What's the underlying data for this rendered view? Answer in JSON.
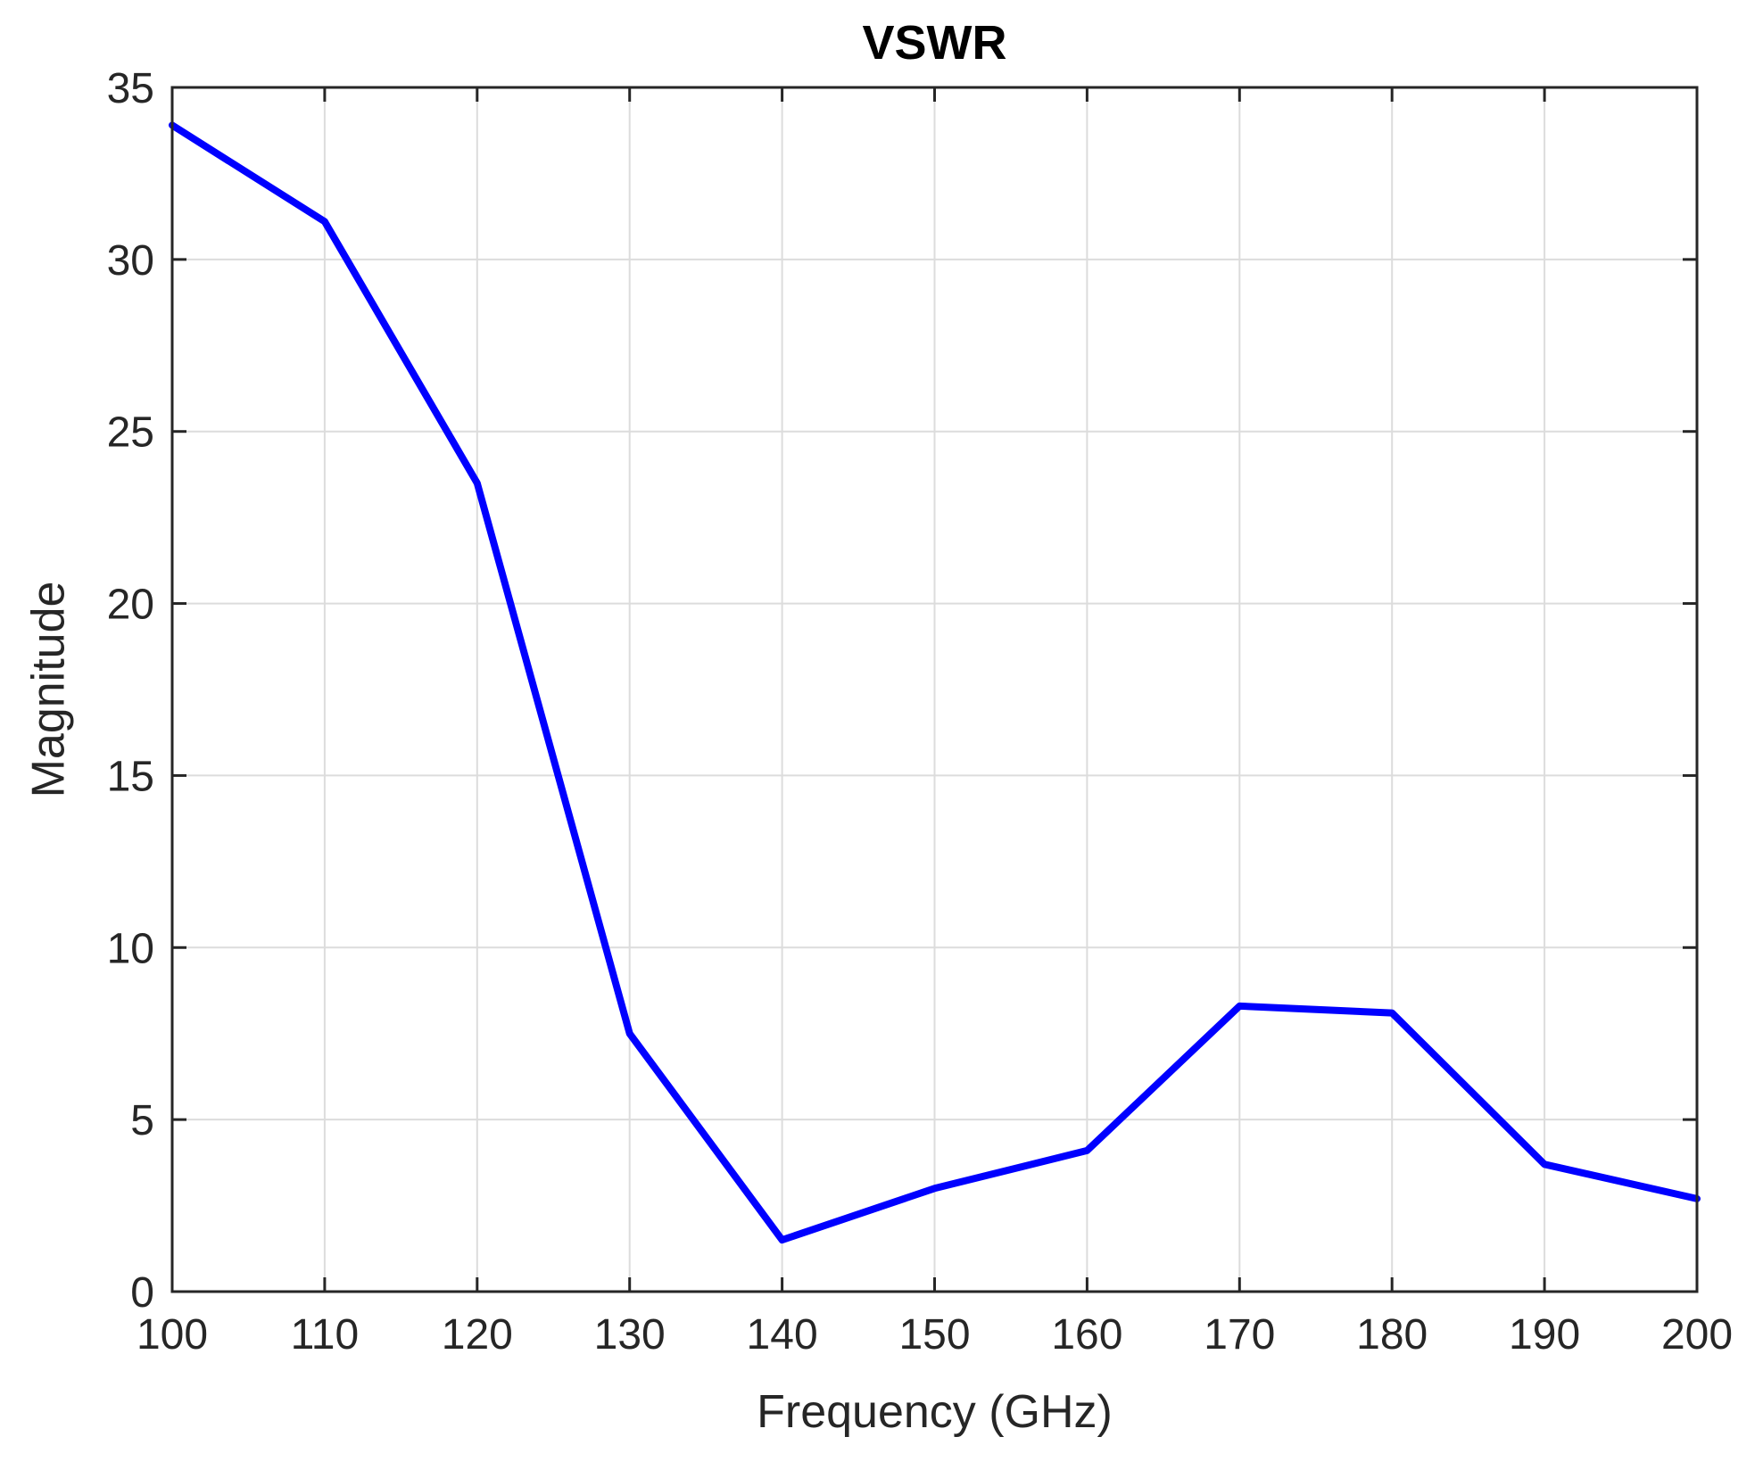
{
  "chart_data": {
    "type": "line",
    "title": "VSWR",
    "xlabel": "Frequency (GHz)",
    "ylabel": "Magnitude",
    "xlim": [
      100,
      200
    ],
    "ylim": [
      0,
      35
    ],
    "xticks": [
      "100",
      "110",
      "120",
      "130",
      "140",
      "150",
      "160",
      "170",
      "180",
      "190",
      "200"
    ],
    "yticks": [
      "0",
      "5",
      "10",
      "15",
      "20",
      "25",
      "30",
      "35"
    ],
    "grid": true,
    "series": [
      {
        "color": "#0000ff",
        "x": [
          100,
          110,
          120,
          130,
          140,
          150,
          160,
          170,
          180,
          190,
          200
        ],
        "y": [
          33.9,
          31.1,
          23.5,
          7.5,
          1.5,
          3.0,
          4.1,
          8.3,
          8.1,
          3.7,
          2.7
        ]
      }
    ]
  }
}
